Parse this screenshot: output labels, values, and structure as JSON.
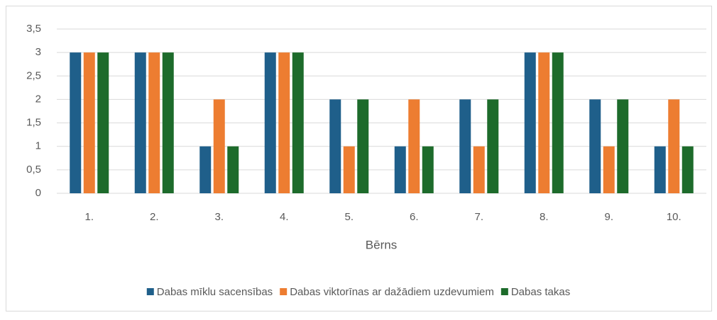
{
  "chart_data": {
    "type": "bar",
    "x_label": "Bērns",
    "categories": [
      "1.",
      "2.",
      "3.",
      "4.",
      "5.",
      "6.",
      "7.",
      "8.",
      "9.",
      "10."
    ],
    "series": [
      {
        "name": "Dabas mīklu sacensības",
        "color": "#1f5f8a",
        "values": [
          3,
          3,
          1,
          3,
          2,
          1,
          2,
          3,
          2,
          1
        ]
      },
      {
        "name": "Dabas viktorīnas ar dažādiem uzdevumiem",
        "color": "#ed7d31",
        "values": [
          3,
          3,
          2,
          3,
          1,
          2,
          1,
          3,
          1,
          2
        ]
      },
      {
        "name": "Dabas takas",
        "color": "#1d6b2b",
        "values": [
          3,
          3,
          1,
          3,
          2,
          1,
          2,
          3,
          2,
          1
        ]
      }
    ],
    "ylim": [
      0,
      3.5
    ],
    "yticks": [
      0,
      {
        "value": 0.5,
        "label": "0,5"
      },
      1,
      {
        "value": 1.5,
        "label": "1,5"
      },
      2,
      {
        "value": 2.5,
        "label": "2,5"
      },
      3,
      {
        "value": 3.5,
        "label": "3,5"
      }
    ],
    "grid": true,
    "legend": "bottom"
  }
}
